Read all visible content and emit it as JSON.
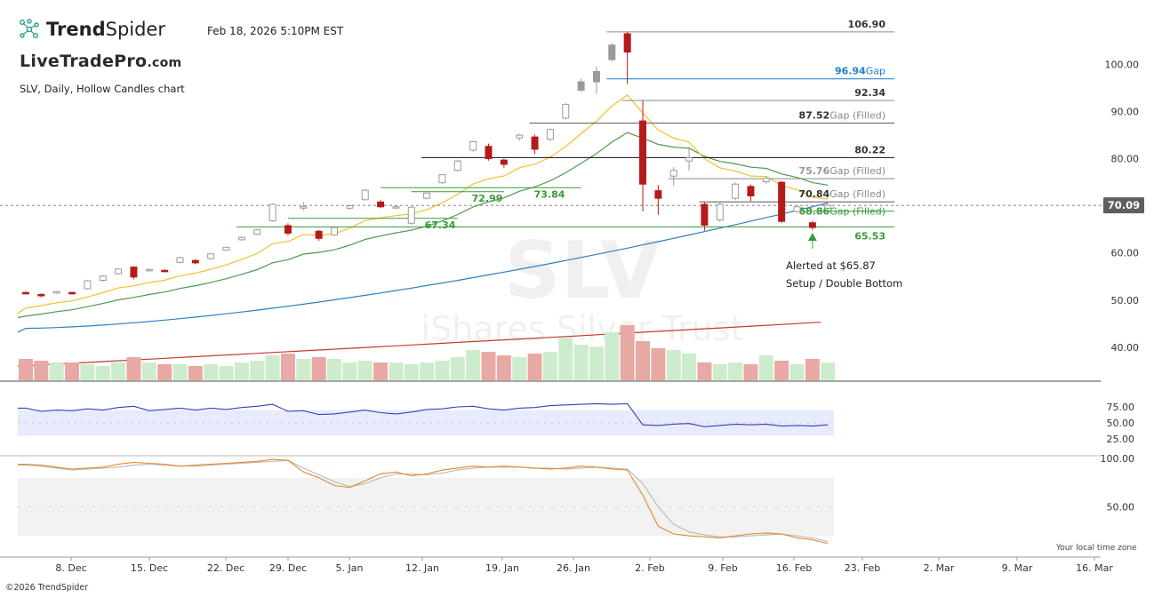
{
  "header": {
    "brand_prefix": "Trend",
    "brand_suffix": "Spider",
    "watermark_logo_text": "LiveTradePro",
    "watermark_logo_suffix": ".com",
    "datetime": "Feb 18, 2026 5:10PM EST",
    "chart_description": "SLV, Daily, Hollow Candles chart"
  },
  "footer": {
    "copyright": "©2026 TrendSpider",
    "local_time_note": "Your local time zone"
  },
  "colors": {
    "up_candle": "#9a9a9a",
    "down_candle": "#b51a1a",
    "ema_fast": "#f2c12e",
    "ema_mid": "#4c9a4c",
    "sma_slow": "#2f7fc1",
    "sma_long": "#c4392f",
    "gap_blue": "#1f7fd1",
    "gap_green": "#3a9a3a",
    "volume_up": "#cdeccd",
    "volume_down": "#e8a9a4",
    "rsi_line": "#3a3ac4",
    "stoch_k": "#e8862a",
    "stoch_d": "#b9b9b9"
  },
  "chart_data": {
    "type": "candlestick",
    "symbol": "SLV",
    "watermark_symbol": "SLV",
    "watermark_name": "iShares Silver Trust",
    "x_tick_labels": [
      "8. Dec",
      "15. Dec",
      "22. Dec",
      "29. Dec",
      "5. Jan",
      "12. Jan",
      "19. Jan",
      "26. Jan",
      "2. Feb",
      "9. Feb",
      "16. Feb",
      "23. Feb",
      "2. Mar",
      "9. Mar",
      "16. Mar"
    ],
    "y_ticks": [
      40,
      50,
      60,
      70,
      80,
      90,
      100
    ],
    "y_range": [
      33,
      108
    ],
    "last_price": "70.09",
    "candles": [
      {
        "date": "2025-12-01",
        "o": 51.6,
        "h": 51.9,
        "l": 51.3,
        "c": 51.6,
        "dir": "down"
      },
      {
        "date": "2025-12-02",
        "o": 51.2,
        "h": 51.4,
        "l": 50.6,
        "c": 50.9,
        "dir": "down"
      },
      {
        "date": "2025-12-03",
        "o": 51.5,
        "h": 52.0,
        "l": 51.3,
        "c": 51.8,
        "dir": "up"
      },
      {
        "date": "2025-12-04",
        "o": 51.6,
        "h": 51.8,
        "l": 51.2,
        "c": 51.4,
        "dir": "down"
      },
      {
        "date": "2025-12-05",
        "o": 52.4,
        "h": 54.3,
        "l": 52.2,
        "c": 54.1,
        "dir": "up"
      },
      {
        "date": "2025-12-08",
        "o": 54.2,
        "h": 55.3,
        "l": 53.9,
        "c": 55.1,
        "dir": "up"
      },
      {
        "date": "2025-12-09",
        "o": 55.6,
        "h": 56.7,
        "l": 55.4,
        "c": 56.6,
        "dir": "up"
      },
      {
        "date": "2025-12-10",
        "o": 57.0,
        "h": 57.2,
        "l": 54.4,
        "c": 54.9,
        "dir": "down"
      },
      {
        "date": "2025-12-11",
        "o": 56.4,
        "h": 56.7,
        "l": 56.0,
        "c": 56.5,
        "dir": "up"
      },
      {
        "date": "2025-12-12",
        "o": 56.3,
        "h": 56.6,
        "l": 56.0,
        "c": 56.1,
        "dir": "down"
      },
      {
        "date": "2025-12-15",
        "o": 58.0,
        "h": 59.2,
        "l": 57.8,
        "c": 59.0,
        "dir": "up"
      },
      {
        "date": "2025-12-16",
        "o": 58.4,
        "h": 58.7,
        "l": 57.6,
        "c": 57.9,
        "dir": "down"
      },
      {
        "date": "2025-12-17",
        "o": 58.8,
        "h": 60.0,
        "l": 58.6,
        "c": 59.8,
        "dir": "up"
      },
      {
        "date": "2025-12-18",
        "o": 60.6,
        "h": 61.3,
        "l": 60.5,
        "c": 61.2,
        "dir": "up"
      },
      {
        "date": "2025-12-19",
        "o": 62.8,
        "h": 63.5,
        "l": 62.6,
        "c": 63.3,
        "dir": "up"
      },
      {
        "date": "2025-12-22",
        "o": 64.0,
        "h": 65.0,
        "l": 63.8,
        "c": 64.9,
        "dir": "up"
      },
      {
        "date": "2025-12-23",
        "o": 66.8,
        "h": 70.5,
        "l": 66.6,
        "c": 70.3,
        "dir": "up"
      },
      {
        "date": "2025-12-24",
        "o": 65.8,
        "h": 66.3,
        "l": 63.7,
        "c": 64.2,
        "dir": "down"
      },
      {
        "date": "2025-12-26",
        "o": 69.5,
        "h": 70.8,
        "l": 69.0,
        "c": 69.8,
        "dir": "up"
      },
      {
        "date": "2025-12-29",
        "o": 64.6,
        "h": 64.9,
        "l": 62.6,
        "c": 63.1,
        "dir": "down"
      },
      {
        "date": "2025-12-30",
        "o": 63.8,
        "h": 65.5,
        "l": 63.6,
        "c": 65.4,
        "dir": "up"
      },
      {
        "date": "2025-12-31",
        "o": 69.5,
        "h": 70.2,
        "l": 69.2,
        "c": 70.0,
        "dir": "up"
      },
      {
        "date": "2026-01-02",
        "o": 71.3,
        "h": 73.5,
        "l": 71.1,
        "c": 73.3,
        "dir": "up"
      },
      {
        "date": "2026-01-05",
        "o": 70.8,
        "h": 71.2,
        "l": 69.5,
        "c": 69.8,
        "dir": "down"
      },
      {
        "date": "2026-01-06",
        "o": 69.6,
        "h": 70.0,
        "l": 69.4,
        "c": 69.8,
        "dir": "up"
      },
      {
        "date": "2026-01-07",
        "o": 66.3,
        "h": 69.9,
        "l": 66.0,
        "c": 69.7,
        "dir": "up"
      },
      {
        "date": "2026-01-08",
        "o": 71.6,
        "h": 72.8,
        "l": 71.4,
        "c": 72.7,
        "dir": "up"
      },
      {
        "date": "2026-01-09",
        "o": 74.9,
        "h": 76.7,
        "l": 74.6,
        "c": 76.6,
        "dir": "up"
      },
      {
        "date": "2026-01-12",
        "o": 77.5,
        "h": 79.8,
        "l": 77.2,
        "c": 79.5,
        "dir": "up"
      },
      {
        "date": "2026-01-13",
        "o": 81.8,
        "h": 83.8,
        "l": 81.5,
        "c": 83.6,
        "dir": "up"
      },
      {
        "date": "2026-01-14",
        "o": 82.6,
        "h": 83.2,
        "l": 79.6,
        "c": 80.0,
        "dir": "down"
      },
      {
        "date": "2026-01-15",
        "o": 79.7,
        "h": 80.0,
        "l": 78.1,
        "c": 78.8,
        "dir": "down"
      },
      {
        "date": "2026-01-16",
        "o": 84.4,
        "h": 85.3,
        "l": 83.8,
        "c": 85.0,
        "dir": "up"
      },
      {
        "date": "2026-01-20",
        "o": 84.6,
        "h": 85.1,
        "l": 81.0,
        "c": 82.0,
        "dir": "down"
      },
      {
        "date": "2026-01-21",
        "o": 84.1,
        "h": 86.4,
        "l": 83.7,
        "c": 86.2,
        "dir": "up"
      },
      {
        "date": "2026-01-22",
        "o": 88.6,
        "h": 91.8,
        "l": 88.3,
        "c": 91.5,
        "dir": "up"
      },
      {
        "date": "2026-01-23",
        "o": 94.5,
        "h": 97.0,
        "l": 94.2,
        "c": 96.3,
        "dir": "up"
      },
      {
        "date": "2026-01-26",
        "o": 96.3,
        "h": 99.5,
        "l": 93.8,
        "c": 98.5,
        "dir": "up"
      },
      {
        "date": "2026-01-27",
        "o": 101.0,
        "h": 104.5,
        "l": 100.6,
        "c": 104.1,
        "dir": "up"
      },
      {
        "date": "2026-01-28",
        "o": 106.5,
        "h": 106.9,
        "l": 95.8,
        "c": 102.6,
        "dir": "down"
      },
      {
        "date": "2026-01-29",
        "o": 88.0,
        "h": 92.4,
        "l": 68.8,
        "c": 74.6,
        "dir": "down"
      },
      {
        "date": "2026-01-30",
        "o": 73.2,
        "h": 74.4,
        "l": 68.1,
        "c": 71.6,
        "dir": "down"
      },
      {
        "date": "2026-02-02",
        "o": 76.3,
        "h": 78.2,
        "l": 74.2,
        "c": 77.5,
        "dir": "up"
      },
      {
        "date": "2026-02-03",
        "o": 79.5,
        "h": 82.5,
        "l": 77.5,
        "c": 80.2,
        "dir": "up"
      },
      {
        "date": "2026-02-04",
        "o": 70.3,
        "h": 70.7,
        "l": 64.7,
        "c": 65.9,
        "dir": "down"
      },
      {
        "date": "2026-02-05",
        "o": 67.0,
        "h": 70.9,
        "l": 66.6,
        "c": 70.3,
        "dir": "up"
      },
      {
        "date": "2026-02-06",
        "o": 71.6,
        "h": 75.0,
        "l": 71.2,
        "c": 74.6,
        "dir": "up"
      },
      {
        "date": "2026-02-09",
        "o": 74.1,
        "h": 74.5,
        "l": 71.0,
        "c": 72.1,
        "dir": "down"
      },
      {
        "date": "2026-02-10",
        "o": 75.1,
        "h": 76.3,
        "l": 74.7,
        "c": 75.8,
        "dir": "up"
      },
      {
        "date": "2026-02-11",
        "o": 75.0,
        "h": 75.2,
        "l": 66.4,
        "c": 66.7,
        "dir": "down"
      },
      {
        "date": "2026-02-12",
        "o": 68.8,
        "h": 70.2,
        "l": 68.5,
        "c": 69.8,
        "dir": "up"
      },
      {
        "date": "2026-02-13",
        "o": 66.4,
        "h": 66.8,
        "l": 64.9,
        "c": 65.4,
        "dir": "down"
      },
      {
        "date": "2026-02-17",
        "o": 69.5,
        "h": 70.3,
        "l": 69.2,
        "c": 70.1,
        "dir": "up"
      }
    ],
    "levels": [
      {
        "value": 106.9,
        "label": "106.90",
        "suffix": "",
        "kind": "resistance"
      },
      {
        "value": 96.94,
        "label": "96.94",
        "suffix": "Gap",
        "kind": "gap-open"
      },
      {
        "value": 92.34,
        "label": "92.34",
        "suffix": "",
        "kind": "resistance"
      },
      {
        "value": 87.52,
        "label": "87.52",
        "suffix": "Gap (Filled)",
        "kind": "gap-filled"
      },
      {
        "value": 80.22,
        "label": "80.22",
        "suffix": "",
        "kind": "key"
      },
      {
        "value": 75.76,
        "label": "75.76",
        "suffix": "Gap (Filled)",
        "kind": "gap-filled-faint"
      },
      {
        "value": 70.84,
        "label": "70.84",
        "suffix": "Gap (Filled)",
        "kind": "gap-filled"
      },
      {
        "value": 68.86,
        "label": "68.86",
        "suffix": "Gap (Filled)",
        "kind": "gap-green"
      },
      {
        "value": 65.53,
        "label": "65.53",
        "suffix": "",
        "kind": "support"
      }
    ],
    "support_labels": [
      "67.34",
      "72.99",
      "73.84"
    ],
    "annotation": {
      "line1": "Alerted at $65.87",
      "line2": "Setup / Double Bottom"
    },
    "volume": [
      12,
      11,
      10,
      10,
      9,
      8,
      10,
      13,
      10,
      9,
      9,
      8,
      9,
      8,
      10,
      11,
      14,
      15,
      12,
      13,
      12,
      10,
      11,
      10,
      10,
      9,
      10,
      11,
      13,
      17,
      16,
      14,
      13,
      15,
      16,
      24,
      20,
      19,
      27,
      31,
      22,
      18,
      17,
      15,
      10,
      9,
      10,
      9,
      14,
      11,
      9,
      12,
      10
    ],
    "rsi": {
      "ticks": [
        25,
        50,
        75
      ],
      "band": [
        30,
        70
      ],
      "values": [
        73,
        68,
        70,
        69,
        72,
        70,
        74,
        76,
        69,
        71,
        73,
        70,
        73,
        71,
        74,
        76,
        79,
        68,
        69,
        63,
        64,
        67,
        70,
        66,
        64,
        67,
        71,
        72,
        75,
        76,
        72,
        70,
        73,
        74,
        77,
        78,
        79,
        80,
        79,
        80,
        47,
        46,
        48,
        49,
        44,
        46,
        48,
        47,
        48,
        45,
        46,
        45,
        47
      ]
    },
    "stoch": {
      "ticks": [
        50,
        100
      ],
      "band": [
        20,
        80
      ],
      "k": [
        94,
        93,
        91,
        89,
        90,
        91,
        94,
        96,
        95,
        94,
        92,
        93,
        94,
        95,
        96,
        97,
        99,
        98,
        86,
        80,
        72,
        70,
        77,
        84,
        86,
        82,
        84,
        88,
        90,
        92,
        91,
        92,
        91,
        90,
        89,
        90,
        92,
        91,
        89,
        88,
        62,
        30,
        22,
        20,
        19,
        18,
        20,
        22,
        23,
        22,
        18,
        16,
        12
      ],
      "d": [
        93,
        92,
        90,
        88,
        89,
        90,
        91,
        93,
        94,
        93,
        92,
        92,
        93,
        94,
        95,
        96,
        97,
        98,
        90,
        83,
        76,
        71,
        74,
        80,
        84,
        84,
        83,
        85,
        88,
        90,
        91,
        91,
        91,
        90,
        90,
        89,
        90,
        91,
        90,
        89,
        74,
        50,
        32,
        24,
        21,
        19,
        19,
        20,
        21,
        22,
        20,
        18,
        14
      ]
    }
  }
}
